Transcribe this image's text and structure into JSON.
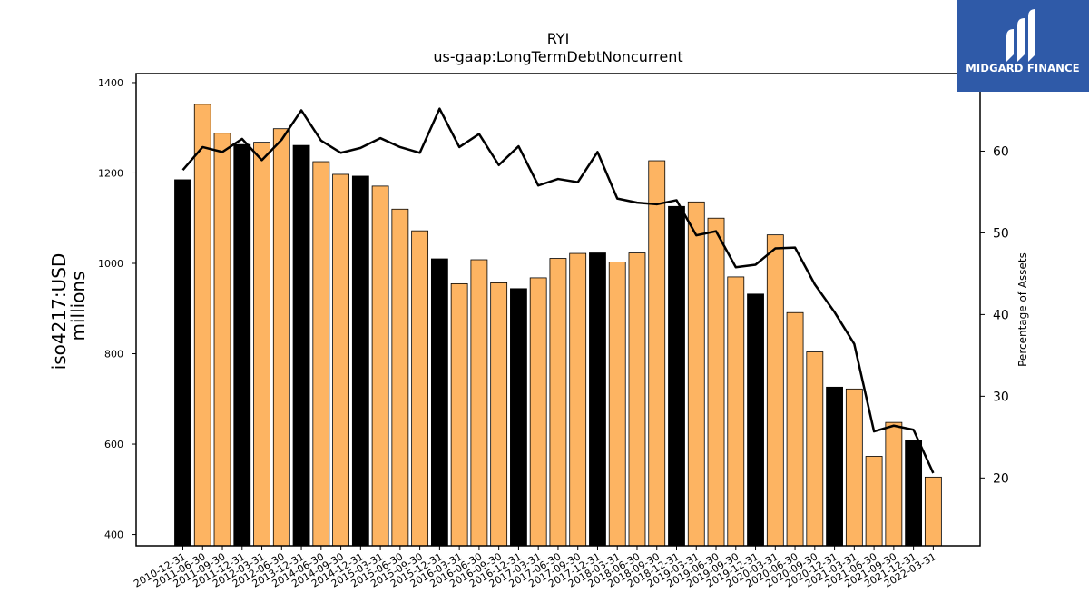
{
  "chart_data": {
    "type": "bar",
    "title": "RYI",
    "subtitle": "us-gaap:LongTermDebtNoncurrent",
    "ylabel": "iso4217:USD",
    "ylabel2": "millions",
    "y2label": "Percentage of Assets",
    "ylim": [
      375,
      1420
    ],
    "y2lim": [
      11.7,
      69.5
    ],
    "yticks": [
      400,
      600,
      800,
      1000,
      1200,
      1400
    ],
    "y2ticks": [
      20,
      30,
      40,
      50,
      60
    ],
    "categories": [
      "2010-12-31",
      "2011-06-30",
      "2011-09-30",
      "2011-12-31",
      "2012-03-31",
      "2012-06-30",
      "2013-12-31",
      "2014-06-30",
      "2014-09-30",
      "2014-12-31",
      "2015-03-31",
      "2015-06-30",
      "2015-09-30",
      "2015-12-31",
      "2016-03-31",
      "2016-06-30",
      "2016-09-30",
      "2016-12-31",
      "2017-03-31",
      "2017-06-30",
      "2017-09-30",
      "2017-12-31",
      "2018-03-31",
      "2018-06-30",
      "2018-09-30",
      "2018-12-31",
      "2019-03-31",
      "2019-06-30",
      "2019-09-30",
      "2019-12-31",
      "2020-03-31",
      "2020-06-30",
      "2020-09-30",
      "2020-12-31",
      "2021-03-31",
      "2021-06-30",
      "2021-09-30",
      "2021-12-31",
      "2022-03-31"
    ],
    "series": [
      {
        "values": [
          1185,
          1352,
          1288,
          1263,
          1268,
          1298,
          1261,
          1225,
          1197,
          1193,
          1171,
          1120,
          1072,
          1010,
          955,
          1008,
          957,
          944,
          968,
          1011,
          1022,
          1023,
          1003,
          1023,
          1227,
          1126,
          1136,
          1100,
          970,
          932,
          1063,
          891,
          804,
          726,
          722,
          573,
          648,
          608,
          527
        ]
      },
      {
        "axis": "right",
        "type": "line",
        "values": [
          57.7,
          60.5,
          59.9,
          61.5,
          58.9,
          61.4,
          65.0,
          61.3,
          59.8,
          60.4,
          61.6,
          60.5,
          59.8,
          65.2,
          60.5,
          62.1,
          58.3,
          60.6,
          55.8,
          56.6,
          56.2,
          59.9,
          54.2,
          53.7,
          53.5,
          54.0,
          49.7,
          50.2,
          45.8,
          46.1,
          48.1,
          48.2,
          43.7,
          40.3,
          36.4,
          25.7,
          26.4,
          25.9,
          20.6
        ]
      }
    ],
    "colors": {
      "bar_default": "#fdb462",
      "bar_year_end": "#000000",
      "line": "#000000"
    }
  },
  "logo": {
    "text": "MIDGARD FINANCE",
    "background": "#2f5aa8"
  }
}
